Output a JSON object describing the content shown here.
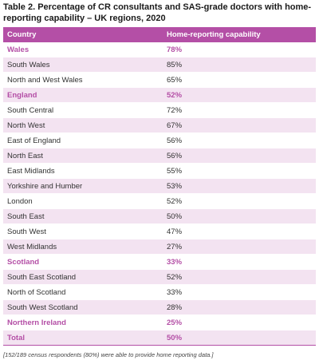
{
  "title": "Table 2. Percentage of CR consultants and SAS-grade doctors with home-reporting capability – UK regions, 2020",
  "headers": [
    "Country",
    "Home-reporting capability"
  ],
  "rows": [
    {
      "name": "Wales",
      "value": "78%",
      "kind": "group-plain"
    },
    {
      "name": "South Wales",
      "value": "85%",
      "kind": "alt"
    },
    {
      "name": "North and West Wales",
      "value": "65%",
      "kind": "plain"
    },
    {
      "name": "England",
      "value": "52%",
      "kind": "group"
    },
    {
      "name": "South Central",
      "value": "72%",
      "kind": "plain"
    },
    {
      "name": "North West",
      "value": "67%",
      "kind": "alt"
    },
    {
      "name": "East of England",
      "value": "56%",
      "kind": "plain"
    },
    {
      "name": "North East",
      "value": "56%",
      "kind": "alt"
    },
    {
      "name": "East Midlands",
      "value": "55%",
      "kind": "plain"
    },
    {
      "name": "Yorkshire and Humber",
      "value": "53%",
      "kind": "alt"
    },
    {
      "name": "London",
      "value": "52%",
      "kind": "plain"
    },
    {
      "name": "South East",
      "value": "50%",
      "kind": "alt"
    },
    {
      "name": "South West",
      "value": "47%",
      "kind": "plain"
    },
    {
      "name": "West Midlands",
      "value": "27%",
      "kind": "alt"
    },
    {
      "name": "Scotland",
      "value": "33%",
      "kind": "group-plain"
    },
    {
      "name": "South East Scotland",
      "value": "52%",
      "kind": "alt"
    },
    {
      "name": "North of Scotland",
      "value": "33%",
      "kind": "plain"
    },
    {
      "name": "South West Scotland",
      "value": "28%",
      "kind": "alt"
    },
    {
      "name": "Northern Ireland",
      "value": "25%",
      "kind": "group-plain"
    },
    {
      "name": "Total",
      "value": "50%",
      "kind": "total"
    }
  ],
  "footnote": "[152/189 census respondents (80%) were able to provide home reporting data.]",
  "colors": {
    "accent": "#b44fa6",
    "row_tint": "#f3e3f1"
  }
}
